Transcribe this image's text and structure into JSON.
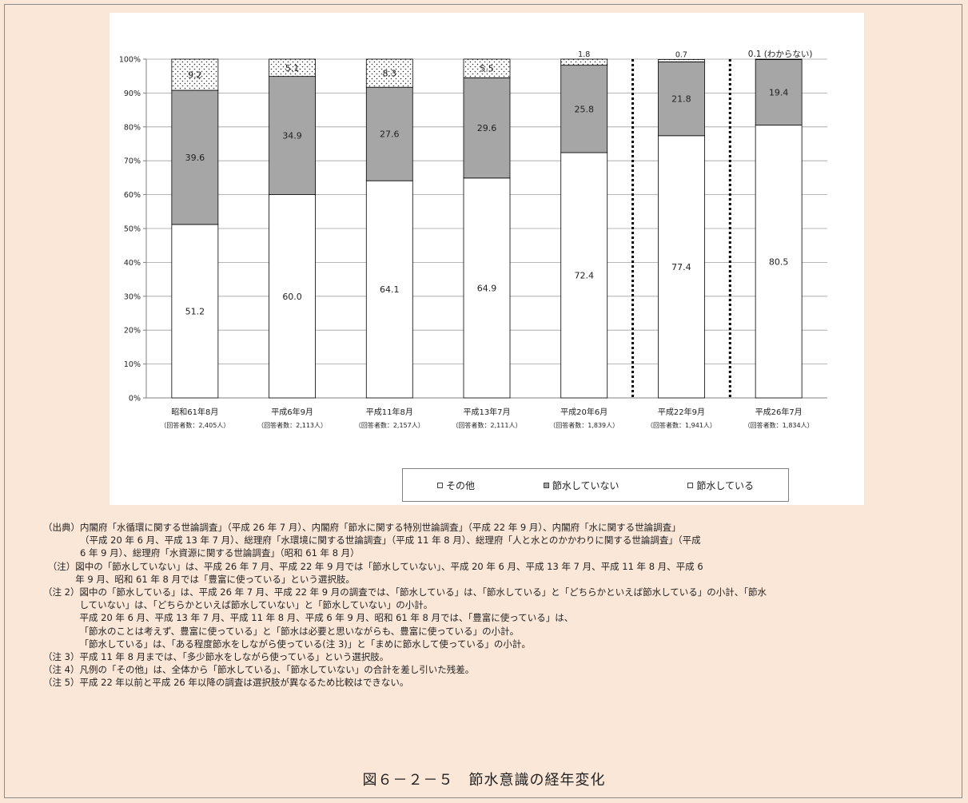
{
  "chart_data": {
    "type": "bar",
    "stacked": true,
    "categories": [
      {
        "label": "昭和61年8月",
        "sub": "（回答者数：2,405人）"
      },
      {
        "label": "平成6年9月",
        "sub": "（回答者数：2,113人）"
      },
      {
        "label": "平成11年8月",
        "sub": "（回答者数：2,157人）"
      },
      {
        "label": "平成13年7月",
        "sub": "（回答者数：2,111人）"
      },
      {
        "label": "平成20年6月",
        "sub": "（回答者数：1,839人）"
      },
      {
        "label": "平成22年9月",
        "sub": "（回答者数：1,941人）"
      },
      {
        "label": "平成26年7月",
        "sub": "（回答者数：1,834人）"
      }
    ],
    "series": [
      {
        "name": "節水している",
        "values": [
          51.2,
          60.0,
          64.1,
          64.9,
          72.4,
          77.4,
          80.5
        ],
        "labels": [
          "51.2",
          "60.0",
          "64.1",
          "64.9",
          "72.4",
          "77.4",
          "80.5"
        ],
        "color": "#ffffff"
      },
      {
        "name": "節水していない",
        "values": [
          39.6,
          34.9,
          27.6,
          29.6,
          25.8,
          21.8,
          19.4
        ],
        "labels": [
          "39.6",
          "34.9",
          "27.6",
          "29.6",
          "25.8",
          "21.8",
          "19.4"
        ],
        "color": "#a6a6a6"
      },
      {
        "name": "その他",
        "values": [
          9.2,
          5.1,
          8.3,
          5.5,
          1.8,
          0.7,
          0.1
        ],
        "labels": [
          "9.2",
          "5.1",
          "8.3",
          "5.5",
          "1.8",
          "0.7",
          "0.1 (わからない)"
        ],
        "pattern": "dots"
      }
    ],
    "ylim": [
      0,
      100
    ],
    "yticks": [
      "0%",
      "10%",
      "20%",
      "30%",
      "40%",
      "50%",
      "60%",
      "70%",
      "80%",
      "90%",
      "100%"
    ],
    "grid": true,
    "dividers_after_category_index": [
      4,
      5
    ],
    "legend": {
      "position": "bottom",
      "order": [
        "その他",
        "節水していない",
        "節水している"
      ]
    }
  },
  "legend_labels": {
    "other": "その他",
    "not_saving": "節水していない",
    "saving": "節水している"
  },
  "notes": [
    {
      "prefix": "（出典）",
      "lines": [
        "内閣府「水循環に関する世論調査」（平成 26 年 7 月）、内閣府「節水に関する特別世論調査」（平成 22 年 9 月）、内閣府「水に関する世論調査」",
        "（平成 20 年 6 月、平成 13 年 7 月）、総理府「水環境に関する世論調査」（平成 11 年 8 月）、総理府「人と水とのかかわりに関する世論調査」（平成",
        "6 年 9 月）、総理府「水資源に関する世論調査」（昭和 61 年 8 月）"
      ]
    },
    {
      "prefix": "　（注）",
      "lines": [
        "図中の「節水していない」は、平成 26 年 7 月、平成 22 年 9 月では「節水していない」、平成 20 年 6 月、平成 13 年 7 月、平成 11 年 8 月、平成 6",
        "年 9 月、昭和 61 年 8 月では「豊富に使っている」という選択肢。"
      ]
    },
    {
      "prefix": "（注 2）",
      "lines": [
        "図中の「節水している」は、平成 26 年 7 月、平成 22 年 9 月の調査では、「節水している」は、「節水している」と「どちらかといえば節水している」の小計、「節水",
        "していない」は、「どちらかといえば節水していない」と「節水していない」の小計。",
        "平成 20 年 6 月、平成 13 年 7 月、平成 11 年 8 月、平成 6 年 9 月、昭和 61 年 8 月では、「豊富に使っている」は、",
        "「節水のことは考えず、豊富に使っている」と「節水は必要と思いながらも、豊富に使っている」の小計。",
        "「節水している」は、「ある程度節水をしながら使っている(注 3)」と「まめに節水して使っている」の小計。"
      ]
    },
    {
      "prefix": "（注 3）",
      "lines": [
        "平成 11 年 8 月までは、「多少節水をしながら使っている」という選択肢。"
      ]
    },
    {
      "prefix": "（注 4）",
      "lines": [
        "凡例の「その他」は、全体から「節水している」、「節水していない」の合計を差し引いた残差。"
      ]
    },
    {
      "prefix": "（注 5）",
      "lines": [
        "平成 22 年以前と平成 26 年以降の調査は選択肢が異なるため比較はできない。"
      ]
    }
  ],
  "caption": "図６－２－５　節水意識の経年変化"
}
